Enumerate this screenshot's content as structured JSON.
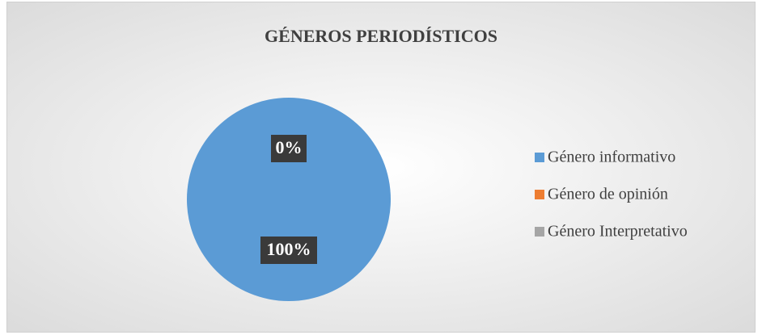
{
  "chart_data": {
    "type": "pie",
    "title": "GÉNEROS PERIODÍSTICOS",
    "categories": [
      "Género informativo",
      "Género de opinión",
      "Género Interpretativo"
    ],
    "values": [
      100,
      0,
      0
    ],
    "value_labels": [
      "100%",
      "0%",
      "0%"
    ],
    "colors": [
      "#5b9bd5",
      "#ed7d31",
      "#a5a5a5"
    ],
    "legend": "right"
  }
}
